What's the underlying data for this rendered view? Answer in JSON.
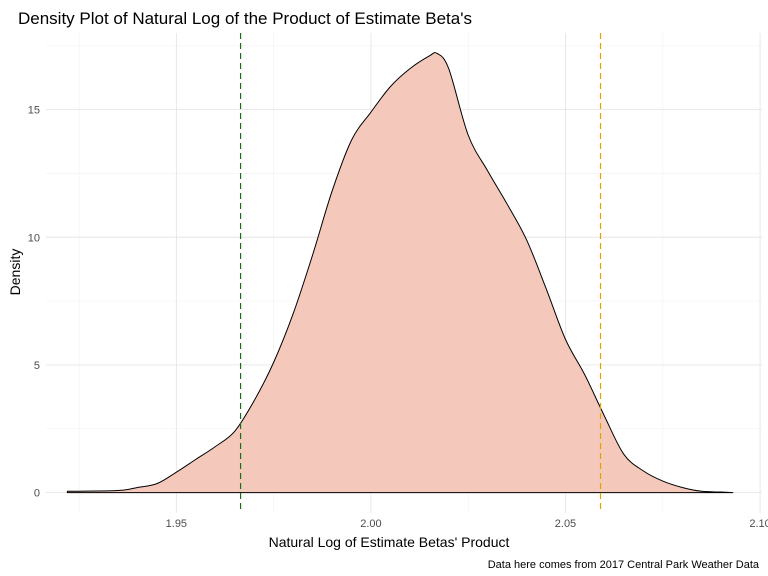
{
  "chart_data": {
    "type": "area",
    "title": "Density Plot of Natural Log of the Product of Estimate Beta's",
    "xlabel": "Natural Log of Estimate Betas' Product",
    "ylabel": "Density",
    "caption": "Data here comes from 2017 Central Park Weather Data",
    "xlim": [
      1.9165,
      2.1005
    ],
    "ylim": [
      -0.8,
      18.0
    ],
    "x_ticks": [
      1.95,
      2.0,
      2.05,
      2.1
    ],
    "x_tick_labels": [
      "1.95",
      "2.00",
      "2.05",
      "2.10"
    ],
    "y_ticks": [
      0,
      5,
      10,
      15
    ],
    "y_tick_labels": [
      "0",
      "5",
      "10",
      "15"
    ],
    "grid": true,
    "fill_color": "#f4c9bb",
    "line_color": "#000000",
    "series": [
      {
        "x": [
          1.922,
          1.935,
          1.94,
          1.945,
          1.95,
          1.955,
          1.96,
          1.965,
          1.97,
          1.975,
          1.98,
          1.985,
          1.99,
          1.995,
          2.0,
          2.005,
          2.01,
          2.015,
          2.017,
          2.02,
          2.025,
          2.03,
          2.035,
          2.04,
          2.045,
          2.05,
          2.055,
          2.06,
          2.065,
          2.07,
          2.075,
          2.08,
          2.085,
          2.09,
          2.093
        ],
        "values": [
          0.05,
          0.08,
          0.2,
          0.35,
          0.8,
          1.3,
          1.8,
          2.4,
          3.6,
          5.1,
          7.0,
          9.3,
          11.8,
          13.8,
          14.9,
          15.9,
          16.6,
          17.1,
          17.2,
          16.6,
          14.0,
          12.6,
          11.3,
          9.9,
          8.0,
          6.0,
          4.6,
          3.0,
          1.5,
          0.85,
          0.45,
          0.2,
          0.05,
          0.02,
          0.0
        ]
      }
    ],
    "reference_lines": [
      {
        "x": 1.9665,
        "color": "#1b6b1b",
        "style": "dashed"
      },
      {
        "x": 2.059,
        "color": "#e69f00",
        "style": "dashed"
      }
    ]
  }
}
